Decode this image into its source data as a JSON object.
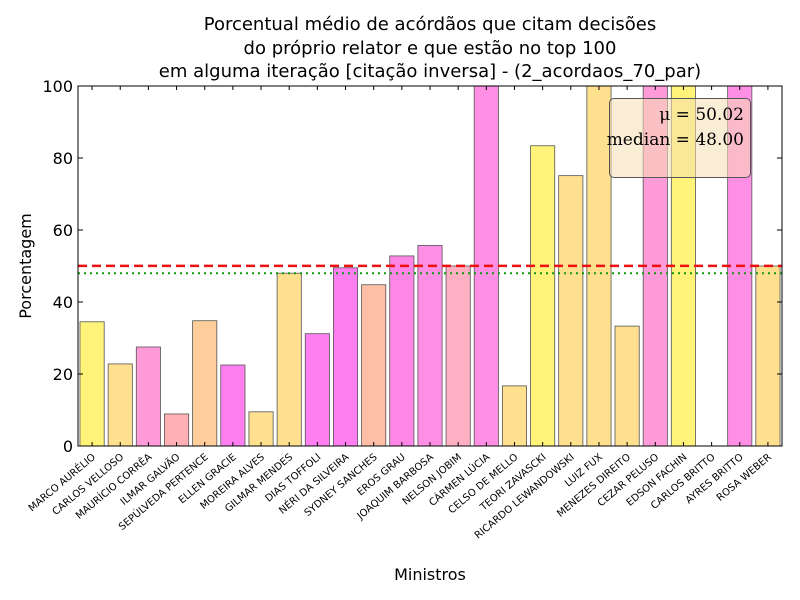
{
  "chart_data": {
    "type": "bar",
    "title_lines": [
      "Porcentual médio de acórdãos que citam decisões",
      "do próprio relator e que estão no top 100",
      "em alguma iteração [citação inversa] - (2_acordaos_70_par)"
    ],
    "xlabel": "Ministros",
    "ylabel": "Porcentagem",
    "ylim": [
      0,
      100
    ],
    "yticks": [
      0,
      20,
      40,
      60,
      80,
      100
    ],
    "categories": [
      "MARCO AURÉLIO",
      "CARLOS VELLOSO",
      "MAURÍCIO CORRÊA",
      "ILMAR GALVÃO",
      "SEPÚLVEDA PERTENCE",
      "ELLEN GRACIE",
      "MOREIRA ALVES",
      "GILMAR MENDES",
      "DIAS TOFFOLI",
      "NÉRI DA SILVEIRA",
      "SYDNEY SANCHES",
      "EROS GRAU",
      "JOAQUIM BARBOSA",
      "NELSON JOBIM",
      "CÁRMEN LÚCIA",
      "CELSO DE MELLO",
      "TEORI ZAVASCKI",
      "RICARDO LEWANDOWSKI",
      "LUIZ FUX",
      "MENEZES DIREITO",
      "CEZAR PELUSO",
      "EDSON FACHIN",
      "CARLOS BRITTO",
      "AYRES BRITTO",
      "ROSA WEBER"
    ],
    "values": [
      34.5,
      22.8,
      27.5,
      8.9,
      34.8,
      22.5,
      9.5,
      48.0,
      31.2,
      49.5,
      44.8,
      52.8,
      55.7,
      50.0,
      100.0,
      16.7,
      83.4,
      75.1,
      100.0,
      33.3,
      100.0,
      100.0,
      0.0,
      100.0,
      50.0
    ],
    "bar_colors": [
      "#FFF37A",
      "#FFE08F",
      "#FF9BD8",
      "#FFB0B5",
      "#FFCE9B",
      "#FF7FF0",
      "#FFE08F",
      "#FFE08F",
      "#FF7FF0",
      "#FF7FF0",
      "#FFBFA6",
      "#FF85E6",
      "#FF8FE4",
      "#FFB0C2",
      "#FF8FE4",
      "#FFE08F",
      "#FFF37A",
      "#FFE08F",
      "#FFE08F",
      "#FFE08F",
      "#FF9BD8",
      "#FFF37A",
      "#FFE08F",
      "#FF8FE4",
      "#FFE08F"
    ],
    "mean": 50.02,
    "median": 48.0,
    "mean_line_color": "#EE1111",
    "median_line_color": "#119911",
    "stats_text": {
      "mean": "μ = 50.02",
      "median": "median = 48.00"
    },
    "stats_box_placement": "top-right",
    "legend": "none",
    "grid": false
  }
}
